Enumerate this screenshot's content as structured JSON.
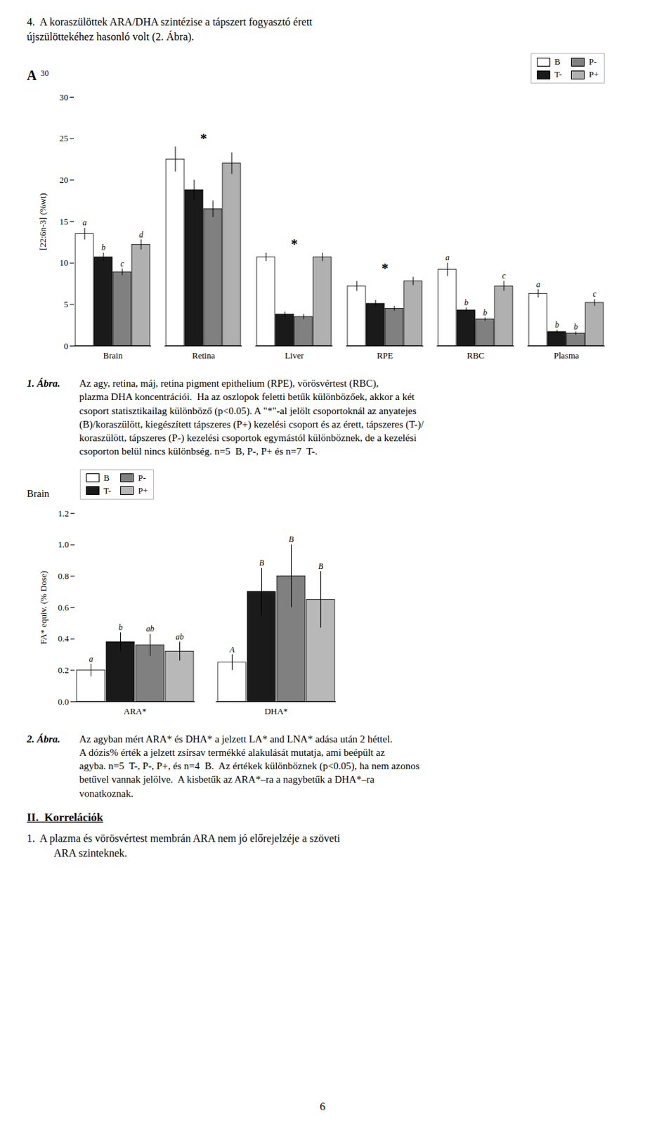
{
  "page": {
    "header": [
      "4.  A koraszülöttek ARA/DHA szintézise a tápszert fogyasztó érett",
      "újszülöttekéhez hasonló volt (2. Ábra)."
    ],
    "section": "II.  Korrelációk",
    "item": [
      "1.  A plazma és vörösvértest membrán ARA nem jó előrejelzéje a szöveti",
      "ARA szinteknek."
    ],
    "page_number": "6"
  },
  "chart_data": [
    {
      "type": "bar",
      "annotations": [
        "A",
        "30"
      ],
      "ylabel": "[22:6n-3] (%wt)",
      "categories": [
        "Brain",
        "Retina",
        "Liver",
        "RPE",
        "RBC",
        "Plasma"
      ],
      "series": [
        {
          "name": "B",
          "color": "#ffffff",
          "values": [
            13.5,
            22.5,
            10.7,
            7.2,
            9.2,
            6.3
          ],
          "errors": [
            0.7,
            1.5,
            0.5,
            0.6,
            0.8,
            0.5
          ],
          "letters": [
            "a",
            null,
            null,
            null,
            "a",
            "a"
          ]
        },
        {
          "name": "T-",
          "color": "#1a1a1a",
          "values": [
            10.7,
            18.8,
            3.8,
            5.1,
            4.3,
            1.7
          ],
          "errors": [
            0.5,
            1.2,
            0.3,
            0.4,
            0.3,
            0.2
          ],
          "letters": [
            "b",
            null,
            null,
            null,
            "b",
            "b"
          ]
        },
        {
          "name": "P-",
          "color": "#808080",
          "values": [
            8.9,
            16.5,
            3.5,
            4.5,
            3.2,
            1.5
          ],
          "errors": [
            0.4,
            1.0,
            0.3,
            0.3,
            0.2,
            0.2
          ],
          "letters": [
            "c",
            null,
            null,
            null,
            "b",
            "b"
          ]
        },
        {
          "name": "P+",
          "color": "#b0b0b0",
          "values": [
            12.2,
            22.0,
            10.7,
            7.8,
            7.2,
            5.2
          ],
          "errors": [
            0.6,
            1.3,
            0.5,
            0.5,
            0.6,
            0.4
          ],
          "letters": [
            "d",
            null,
            null,
            null,
            "c",
            "c"
          ]
        }
      ],
      "group_labels": [
        null,
        "*",
        "*",
        "*",
        null,
        null
      ],
      "edge_color": "#000000",
      "ylim": [
        0,
        30
      ],
      "yticks": [
        0,
        5,
        10,
        15,
        20,
        25,
        30
      ],
      "legend": "upper right",
      "caption_label": "1. Ábra.",
      "caption": [
        "Az agy, retina, máj, retina pigment epithelium (RPE), vörösvértest (RBC),",
        "plazma DHA koncentrációi.  Ha az oszlopok feletti betűk különbözőek, akkor a két",
        "csoport statisztikailag különböző (p<0.05). A \"*\"-al jelölt csoportoknál az anyatejes",
        "(B)/koraszülött, kiegészített tápszeres (P+) kezelési csoport és az érett, tápszeres (T-)/",
        "koraszülött, tápszeres (P-) kezelési csoportok egymástól különböznek, de a kezelési",
        "csoporton belül nincs különbség. n=5  B, P-, P+ és n=7  T-."
      ]
    },
    {
      "type": "bar",
      "title": "Brain",
      "ylabel": "FA* equiv. (% Dose)",
      "categories": [
        "ARA*",
        "DHA*"
      ],
      "series": [
        {
          "name": "B",
          "color": "#ffffff",
          "values": [
            0.2,
            0.25
          ],
          "errors": [
            0.04,
            0.05
          ],
          "letters": [
            "a",
            "A"
          ]
        },
        {
          "name": "T-",
          "color": "#1a1a1a",
          "values": [
            0.38,
            0.7
          ],
          "errors": [
            0.06,
            0.15
          ],
          "letters": [
            "b",
            "B"
          ]
        },
        {
          "name": "P-",
          "color": "#808080",
          "values": [
            0.36,
            0.8
          ],
          "errors": [
            0.07,
            0.2
          ],
          "letters": [
            "ab",
            "B"
          ]
        },
        {
          "name": "P+",
          "color": "#b8b8b8",
          "values": [
            0.32,
            0.65
          ],
          "errors": [
            0.06,
            0.18
          ],
          "letters": [
            "ab",
            "B"
          ]
        }
      ],
      "edge_color": "#000000",
      "ylim": [
        0,
        1.2
      ],
      "yticks": [
        {
          "value": 0,
          "label": "0.0"
        },
        0.2,
        0.4,
        0.6,
        0.8,
        {
          "value": 1,
          "label": "1.0"
        },
        1.2
      ],
      "legend": "upper left",
      "caption_label": "2. Ábra.",
      "caption": [
        "Az agyban mért ARA* és DHA* a jelzett LA* and LNA* adása után 2 héttel.",
        "A dózis% érték a jelzett zsírsav termékké alakulását mutatja, ami beépült az",
        "agyba. n=5  T-, P-, P+, és n=4  B.  Az értékek különböznek (p<0.05), ha nem azonos",
        "betűvel vannak jelölve.  A kisbetűk az ARA*–ra a nagybetűk a DHA*–ra",
        "vonatkoznak."
      ]
    }
  ]
}
